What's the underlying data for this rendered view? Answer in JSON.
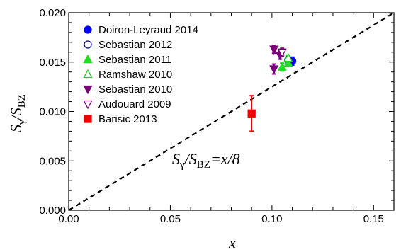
{
  "chart_data": {
    "type": "scatter",
    "xlabel": "x",
    "ylabel": {
      "main": "S",
      "sub1": "γ",
      "sep": "/S",
      "sub2": "BZ"
    },
    "xlim": [
      0.0,
      0.16
    ],
    "ylim": [
      0.0,
      0.02
    ],
    "x_ticks": [
      "0.00",
      "0.05",
      "0.10",
      "0.15"
    ],
    "y_ticks": [
      "0.000",
      "0.005",
      "0.010",
      "0.015",
      "0.020"
    ],
    "grid": false,
    "legend_position": "top-left",
    "reference_line": {
      "slope": 0.125,
      "style": "dashed",
      "color": "#000000"
    },
    "annotation": {
      "main": "S",
      "sub1": "γ",
      "mid": "/S",
      "sub2": "BZ",
      "rest": "=x/8"
    },
    "series": [
      {
        "name": "Doiron-Leyraud 2014",
        "marker": "circle-filled",
        "color": "#0000ff",
        "points": [
          {
            "x": 0.11,
            "y": 0.0151,
            "err": 0.0004
          }
        ]
      },
      {
        "name": "Sebastian 2012",
        "marker": "circle-open",
        "color": "#00007f",
        "points": [
          {
            "x": 0.108,
            "y": 0.0152,
            "err": 0.0004
          }
        ]
      },
      {
        "name": "Sebastian 2011",
        "marker": "triangle-up-filled",
        "color": "#22dd22",
        "points": [
          {
            "x": 0.105,
            "y": 0.0145,
            "err": 0.0004
          },
          {
            "x": 0.108,
            "y": 0.0149,
            "err": 0.0003
          }
        ]
      },
      {
        "name": "Ramshaw 2010",
        "marker": "triangle-up-open",
        "color": "#22cc22",
        "points": [
          {
            "x": 0.108,
            "y": 0.0154,
            "err": 0.0003
          }
        ]
      },
      {
        "name": "Sebastian 2010",
        "marker": "triangle-down-filled",
        "color": "#7a007a",
        "points": [
          {
            "x": 0.101,
            "y": 0.0163,
            "err": 0.0004
          },
          {
            "x": 0.101,
            "y": 0.0143,
            "err": 0.0005
          },
          {
            "x": 0.104,
            "y": 0.0157,
            "err": 0.0004
          }
        ]
      },
      {
        "name": "Audouard 2009",
        "marker": "triangle-down-open",
        "color": "#7a007a",
        "points": [
          {
            "x": 0.105,
            "y": 0.016,
            "err": 0.0004
          }
        ]
      },
      {
        "name": "Barisic 2013",
        "marker": "square-filled",
        "color": "#ee0000",
        "points": [
          {
            "x": 0.09,
            "y": 0.0098,
            "err": 0.0018
          }
        ]
      }
    ]
  }
}
